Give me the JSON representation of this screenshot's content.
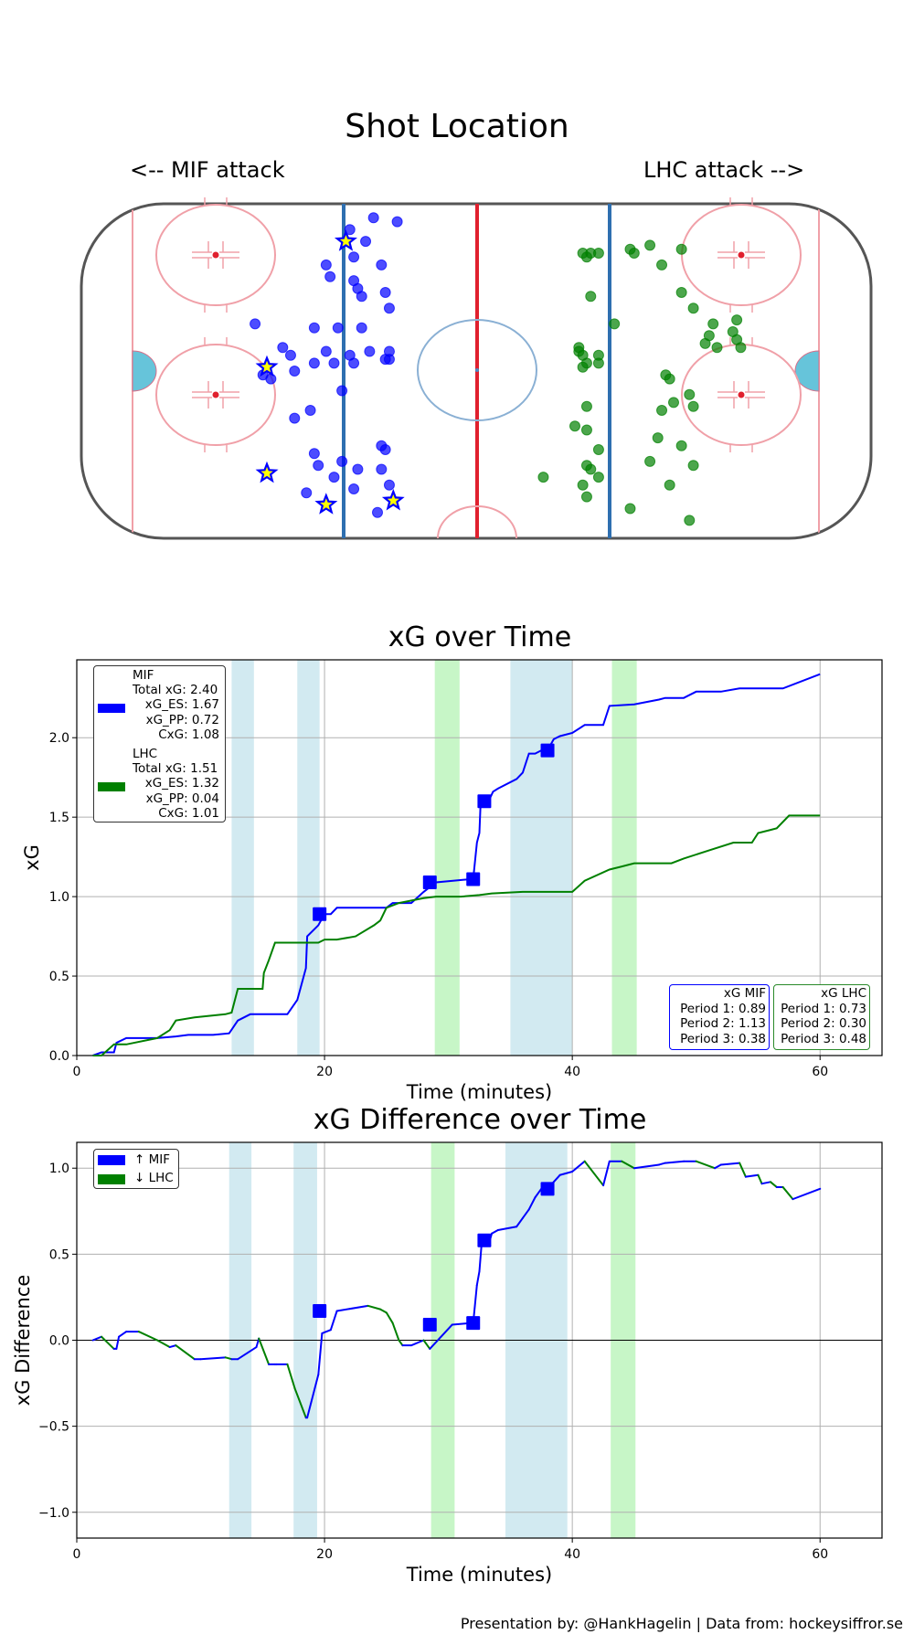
{
  "header": {
    "title": "Shot Location",
    "left_attack": "<-- MIF attack",
    "right_attack": "LHC attack -->"
  },
  "colors": {
    "mif": "#0000ff",
    "lhc": "#008000",
    "pp_band": "#add8e6",
    "pk_band": "#90ee90"
  },
  "footer": "Presentation by: @HankHagelin | Data from: hockeysiffror.se",
  "chart_data": [
    {
      "type": "scatter",
      "title": "Shot Location",
      "series": [
        {
          "name": "MIF shots",
          "marker": "circle",
          "color": "#0000ff",
          "points": [
            [
              -26,
              39
            ],
            [
              -32,
              36
            ],
            [
              -28,
              33
            ],
            [
              -20,
              38
            ],
            [
              -24,
              27
            ],
            [
              -31,
              23
            ],
            [
              -22,
              16
            ],
            [
              -37,
              24
            ],
            [
              -29,
              19
            ],
            [
              -38,
              27
            ],
            [
              -23,
              20
            ],
            [
              -31,
              29
            ],
            [
              -29,
              11
            ],
            [
              -30,
              21
            ],
            [
              -56,
              12
            ],
            [
              -38,
              5
            ],
            [
              -36,
              2
            ],
            [
              -35,
              11
            ],
            [
              -34,
              -5
            ],
            [
              -47,
              4
            ],
            [
              -46,
              0
            ],
            [
              -49,
              6
            ],
            [
              -41,
              11
            ],
            [
              -54,
              -1
            ],
            [
              -52,
              -2
            ],
            [
              -41,
              2
            ],
            [
              -32,
              4
            ],
            [
              -31,
              2
            ],
            [
              -22,
              5
            ],
            [
              -22,
              3
            ],
            [
              -23,
              3
            ],
            [
              -27,
              5
            ],
            [
              -41,
              -21
            ],
            [
              -34,
              -23
            ],
            [
              -42,
              -10
            ],
            [
              -46,
              -12
            ],
            [
              -40,
              -24
            ],
            [
              -43,
              -31
            ],
            [
              -36,
              -27
            ],
            [
              -24,
              -19
            ],
            [
              -24,
              -25
            ],
            [
              -25,
              -36
            ],
            [
              -23,
              -20
            ],
            [
              -22,
              -29
            ],
            [
              -31,
              -30
            ],
            [
              -30,
              -25
            ]
          ]
        },
        {
          "name": "MIF goals",
          "marker": "star",
          "color": "#ffff00",
          "points": [
            [
              -33,
              33
            ],
            [
              -53,
              1
            ],
            [
              -53,
              -26
            ],
            [
              -38,
              -34
            ],
            [
              -21,
              -33
            ]
          ]
        },
        {
          "name": "LHC shots",
          "marker": "circle",
          "color": "#008000",
          "points": [
            [
              27,
              30
            ],
            [
              28,
              29
            ],
            [
              29,
              30
            ],
            [
              31,
              30
            ],
            [
              39,
              31
            ],
            [
              40,
              30
            ],
            [
              44,
              32
            ],
            [
              52,
              31
            ],
            [
              47,
              27
            ],
            [
              52,
              20
            ],
            [
              55,
              16
            ],
            [
              60,
              12
            ],
            [
              59,
              9
            ],
            [
              58,
              7
            ],
            [
              61,
              6
            ],
            [
              66,
              8
            ],
            [
              67,
              6
            ],
            [
              65,
              10
            ],
            [
              66,
              13
            ],
            [
              48,
              -1
            ],
            [
              49,
              -2
            ],
            [
              54,
              -6
            ],
            [
              55,
              -9
            ],
            [
              50,
              -8
            ],
            [
              47,
              -10
            ],
            [
              29,
              19
            ],
            [
              35,
              12
            ],
            [
              26,
              6
            ],
            [
              26,
              5
            ],
            [
              27,
              4
            ],
            [
              31,
              4
            ],
            [
              31,
              2
            ],
            [
              27,
              1
            ],
            [
              28,
              2
            ],
            [
              28,
              -9
            ],
            [
              25,
              -14
            ],
            [
              28,
              -15
            ],
            [
              31,
              -20
            ],
            [
              46,
              -17
            ],
            [
              44,
              -23
            ],
            [
              28,
              -24
            ],
            [
              27,
              -29
            ],
            [
              31,
              -27
            ],
            [
              29,
              -25
            ],
            [
              28,
              -32
            ],
            [
              39,
              -35
            ],
            [
              17,
              -27
            ],
            [
              52,
              -19
            ],
            [
              55,
              -24
            ],
            [
              49,
              -29
            ],
            [
              54,
              -38
            ]
          ]
        }
      ]
    },
    {
      "type": "line",
      "title": "xG over Time",
      "xlabel": "Time (minutes)",
      "ylabel": "xG",
      "xlim": [
        0,
        65
      ],
      "ylim": [
        0,
        2.49
      ],
      "xticks": [
        "0",
        "20",
        "40",
        "60"
      ],
      "yticks": [
        "0.0",
        "0.5",
        "1.0",
        "1.5",
        "2.0"
      ],
      "grid": true,
      "legend_position": "top-left",
      "legend": [
        {
          "team": "MIF",
          "total": "Total xG: 2.40",
          "es": "xG_ES: 1.67",
          "pp": "xG_PP: 0.72",
          "cxg": "CxG: 1.08"
        },
        {
          "team": "LHC",
          "total": "Total xG: 1.51",
          "es": "xG_ES: 1.32",
          "pp": "xG_PP: 0.04",
          "cxg": "CxG: 1.01"
        }
      ],
      "period_boxes": [
        {
          "title": "xG MIF",
          "p1": "Period 1: 0.89",
          "p2": "Period 2: 1.13",
          "p3": "Period 3: 0.38"
        },
        {
          "title": "xG LHC",
          "p1": "Period 1: 0.73",
          "p2": "Period 2: 0.30",
          "p3": "Period 3: 0.48"
        }
      ],
      "bands": [
        {
          "from": 12.5,
          "to": 14.3,
          "type": "pp"
        },
        {
          "from": 17.8,
          "to": 19.6,
          "type": "pp"
        },
        {
          "from": 28.9,
          "to": 30.9,
          "type": "pk"
        },
        {
          "from": 35.0,
          "to": 40.0,
          "type": "pp"
        },
        {
          "from": 43.2,
          "to": 45.2,
          "type": "pk"
        }
      ],
      "series": [
        {
          "name": "MIF",
          "x": [
            1.3,
            2.0,
            3.0,
            3.2,
            4.0,
            6.5,
            8.0,
            9.0,
            11.0,
            12.3,
            13.0,
            14.0,
            17.0,
            17.8,
            18.5,
            18.6,
            19.5,
            20.0,
            20.5,
            21.0,
            25.0,
            25.5,
            27.0,
            28.0,
            29.0,
            31.8,
            32.0,
            32.3,
            32.5,
            32.6,
            32.7,
            32.9,
            33.3,
            33.6,
            34.0,
            35.5,
            36.0,
            36.5,
            37.0,
            37.5,
            38.0,
            38.5,
            39.0,
            40.0,
            41.0,
            42.5,
            43.0,
            45.0,
            47.0,
            47.5,
            49.0,
            50.0,
            52.0,
            53.5,
            57.0,
            60.0
          ],
          "y": [
            0.0,
            0.02,
            0.02,
            0.08,
            0.11,
            0.11,
            0.12,
            0.13,
            0.13,
            0.14,
            0.22,
            0.26,
            0.26,
            0.35,
            0.55,
            0.75,
            0.82,
            0.89,
            0.89,
            0.93,
            0.93,
            0.96,
            0.96,
            1.03,
            1.09,
            1.11,
            1.11,
            1.34,
            1.4,
            1.6,
            1.6,
            1.6,
            1.61,
            1.66,
            1.68,
            1.74,
            1.78,
            1.9,
            1.9,
            1.92,
            1.92,
            1.99,
            2.01,
            2.03,
            2.08,
            2.08,
            2.2,
            2.21,
            2.24,
            2.25,
            2.25,
            2.29,
            2.29,
            2.31,
            2.31,
            2.4
          ]
        },
        {
          "name": "LHC",
          "x": [
            1.3,
            2.0,
            3.0,
            4.0,
            6.5,
            7.5,
            8.0,
            9.5,
            12.0,
            12.5,
            13.0,
            14.0,
            15.0,
            15.1,
            15.5,
            16.0,
            17.0,
            19.5,
            20.0,
            21.0,
            22.5,
            24.0,
            24.5,
            25.0,
            26.0,
            28.0,
            29.0,
            31.0,
            32.5,
            33.5,
            36.0,
            40.0,
            41.0,
            43.0,
            44.0,
            45.0,
            48.0,
            49.0,
            51.0,
            53.0,
            54.5,
            55.0,
            56.0,
            56.5,
            57.5,
            60.0
          ],
          "y": [
            0.0,
            0.0,
            0.07,
            0.07,
            0.11,
            0.16,
            0.22,
            0.24,
            0.26,
            0.27,
            0.42,
            0.42,
            0.42,
            0.52,
            0.6,
            0.71,
            0.71,
            0.71,
            0.73,
            0.73,
            0.75,
            0.82,
            0.85,
            0.93,
            0.96,
            0.99,
            1.0,
            1.0,
            1.01,
            1.02,
            1.03,
            1.03,
            1.1,
            1.17,
            1.19,
            1.21,
            1.21,
            1.24,
            1.29,
            1.34,
            1.34,
            1.4,
            1.42,
            1.43,
            1.51,
            1.51
          ]
        }
      ],
      "goal_markers": {
        "series": "MIF",
        "x": [
          19.6,
          28.5,
          32.0,
          32.9,
          38.0
        ],
        "y": [
          0.89,
          1.09,
          1.11,
          1.6,
          1.92
        ]
      }
    },
    {
      "type": "line",
      "title": "xG Difference over Time",
      "xlabel": "Time (minutes)",
      "ylabel": "xG Difference",
      "xlim": [
        0,
        65
      ],
      "ylim": [
        -1.15,
        1.15
      ],
      "xticks": [
        "0",
        "20",
        "40",
        "60"
      ],
      "yticks": [
        "−1.0",
        "−0.5",
        "0.0",
        "0.5",
        "1.0"
      ],
      "grid": true,
      "legend_position": "top-left",
      "legend": [
        {
          "label": "↑ MIF",
          "color": "#0000ff"
        },
        {
          "label": "↓ LHC",
          "color": "#008000"
        }
      ],
      "bands": [
        {
          "from": 12.3,
          "to": 14.1,
          "type": "pp"
        },
        {
          "from": 17.5,
          "to": 19.4,
          "type": "pp"
        },
        {
          "from": 28.6,
          "to": 30.5,
          "type": "pk"
        },
        {
          "from": 34.6,
          "to": 39.6,
          "type": "pp"
        },
        {
          "from": 43.1,
          "to": 45.1,
          "type": "pk"
        }
      ],
      "series": [
        {
          "name": "xG difference",
          "x": [
            1.3,
            2.0,
            3.0,
            3.2,
            3.4,
            4.0,
            5.0,
            6.5,
            7.5,
            8.0,
            9.5,
            10.0,
            12.0,
            12.5,
            13.0,
            14.5,
            14.7,
            15.5,
            16.0,
            16.1,
            17.0,
            17.6,
            18.5,
            18.6,
            19.5,
            19.8,
            20.5,
            21.0,
            23.5,
            24.5,
            25.0,
            25.5,
            26.0,
            26.3,
            27.0,
            28.0,
            28.5,
            30.3,
            31.8,
            32.0,
            32.3,
            32.5,
            32.7,
            32.9,
            33.3,
            33.5,
            34.0,
            35.5,
            36.0,
            36.5,
            37.0,
            37.5,
            38.0,
            38.5,
            39.0,
            40.0,
            41.0,
            42.5,
            43.0,
            44.0,
            45.0,
            47.0,
            47.5,
            49.0,
            50.0,
            51.5,
            52.0,
            53.5,
            54.0,
            55.0,
            55.3,
            56.0,
            56.5,
            57.0,
            57.8,
            60.0
          ],
          "y": [
            0.0,
            0.02,
            -0.05,
            -0.05,
            0.02,
            0.05,
            0.05,
            0.0,
            -0.04,
            -0.03,
            -0.11,
            -0.11,
            -0.1,
            -0.11,
            -0.11,
            -0.04,
            0.01,
            -0.14,
            -0.14,
            -0.14,
            -0.14,
            -0.28,
            -0.45,
            -0.45,
            -0.2,
            0.04,
            0.06,
            0.17,
            0.2,
            0.18,
            0.16,
            0.1,
            0.0,
            -0.03,
            -0.03,
            0.0,
            -0.05,
            0.09,
            0.1,
            0.1,
            0.32,
            0.4,
            0.58,
            0.58,
            0.57,
            0.62,
            0.64,
            0.66,
            0.71,
            0.76,
            0.83,
            0.88,
            0.88,
            0.92,
            0.96,
            0.98,
            1.04,
            0.9,
            1.04,
            1.04,
            1.0,
            1.02,
            1.03,
            1.04,
            1.04,
            1.0,
            1.02,
            1.03,
            0.95,
            0.96,
            0.91,
            0.92,
            0.89,
            0.89,
            0.82,
            0.88
          ]
        }
      ],
      "goal_markers": {
        "x": [
          19.6,
          28.5,
          32.0,
          32.9,
          38.0
        ],
        "y": [
          0.17,
          0.09,
          0.1,
          0.58,
          0.88
        ]
      }
    }
  ]
}
